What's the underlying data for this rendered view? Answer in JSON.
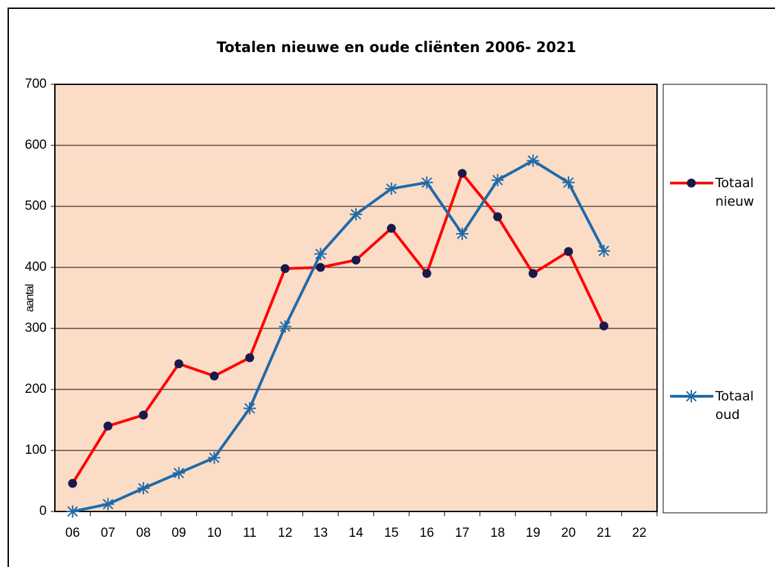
{
  "chart_data": {
    "type": "line",
    "title": "Totalen nieuwe en oude cliënten 2006- 2021",
    "y_label": "aantal",
    "categories": [
      "06",
      "07",
      "08",
      "09",
      "10",
      "11",
      "12",
      "13",
      "14",
      "15",
      "16",
      "17",
      "18",
      "19",
      "20",
      "21",
      "22"
    ],
    "series": [
      {
        "name": "Totaal nieuw",
        "color": "#ff0000",
        "marker": "circle",
        "values": [
          46,
          140,
          158,
          242,
          222,
          252,
          398,
          400,
          412,
          464,
          390,
          554,
          483,
          390,
          426,
          304,
          null
        ]
      },
      {
        "name": "Totaal oud",
        "color": "#1f6aa9",
        "marker": "star",
        "values": [
          0,
          12,
          38,
          63,
          88,
          169,
          303,
          422,
          487,
          529,
          539,
          455,
          543,
          575,
          539,
          427,
          null
        ]
      }
    ],
    "ylim": [
      0,
      700
    ],
    "yticks": [
      0,
      100,
      200,
      300,
      400,
      500,
      600,
      700
    ],
    "grid": true
  }
}
